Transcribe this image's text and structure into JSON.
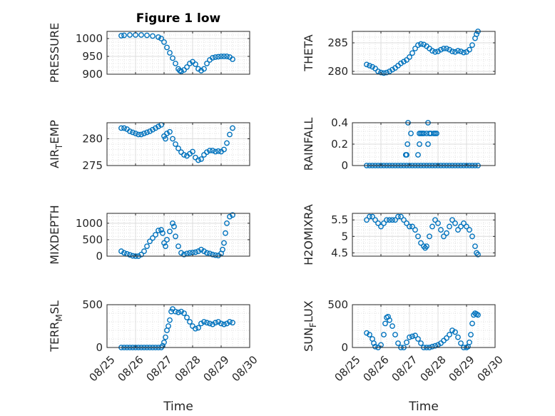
{
  "figure": {
    "title": "Figure 1 low",
    "marker_color": "#0072BD",
    "grid": true,
    "xlabel": "Time"
  },
  "chart_data": [
    {
      "type": "scatter",
      "ylabel": "PRESSURE",
      "title": "Figure 1 low",
      "xlim": [
        0,
        5
      ],
      "ylim": [
        900,
        1020
      ],
      "yticks": [
        900,
        950,
        1000
      ],
      "xticks": [
        0,
        1,
        2,
        3,
        4,
        5
      ],
      "xticklabels": [],
      "x": [
        0.5,
        0.6,
        0.8,
        1.0,
        1.2,
        1.4,
        1.6,
        1.8,
        1.9,
        2.0,
        2.1,
        2.2,
        2.3,
        2.4,
        2.5,
        2.55,
        2.6,
        2.7,
        2.8,
        2.9,
        3.0,
        3.1,
        3.2,
        3.3,
        3.4,
        3.5,
        3.6,
        3.7,
        3.8,
        3.9,
        4.0,
        4.1,
        4.2,
        4.3,
        4.4
      ],
      "y": [
        1008,
        1009,
        1010,
        1010,
        1010,
        1009,
        1007,
        1004,
        1000,
        990,
        975,
        960,
        945,
        930,
        915,
        910,
        908,
        912,
        920,
        930,
        935,
        928,
        915,
        910,
        915,
        930,
        940,
        946,
        948,
        949,
        950,
        950,
        950,
        948,
        942
      ]
    },
    {
      "type": "scatter",
      "ylabel": "THETA",
      "xlim": [
        0,
        5
      ],
      "ylim": [
        279.5,
        287
      ],
      "yticks": [
        280,
        285
      ],
      "xticks": [
        0,
        1,
        2,
        3,
        4,
        5
      ],
      "xticklabels": [],
      "x": [
        0.5,
        0.6,
        0.7,
        0.8,
        0.9,
        1.0,
        1.1,
        1.2,
        1.3,
        1.4,
        1.5,
        1.6,
        1.7,
        1.8,
        1.9,
        2.0,
        2.1,
        2.2,
        2.3,
        2.4,
        2.5,
        2.6,
        2.7,
        2.8,
        2.9,
        3.0,
        3.1,
        3.2,
        3.3,
        3.4,
        3.5,
        3.6,
        3.7,
        3.8,
        3.9,
        4.0,
        4.1,
        4.2,
        4.3,
        4.35,
        4.4
      ],
      "y": [
        281.2,
        281.0,
        280.8,
        280.5,
        280.0,
        279.8,
        279.7,
        279.8,
        280.0,
        280.3,
        280.6,
        281.0,
        281.4,
        281.7,
        282.0,
        282.5,
        283.2,
        284.0,
        284.6,
        284.8,
        284.7,
        284.4,
        284.0,
        283.6,
        283.4,
        283.5,
        283.8,
        284.0,
        284.0,
        283.8,
        283.5,
        283.4,
        283.6,
        283.5,
        283.3,
        283.4,
        283.8,
        284.6,
        285.8,
        286.5,
        287.0
      ]
    },
    {
      "type": "scatter",
      "ylabel": "AIR_TEMP",
      "xlim": [
        0,
        5
      ],
      "ylim": [
        275,
        283
      ],
      "yticks": [
        275,
        280
      ],
      "xticks": [
        0,
        1,
        2,
        3,
        4,
        5
      ],
      "xticklabels": [],
      "x": [
        0.5,
        0.6,
        0.7,
        0.8,
        0.9,
        1.0,
        1.1,
        1.2,
        1.3,
        1.4,
        1.5,
        1.6,
        1.7,
        1.8,
        1.9,
        2.0,
        2.05,
        2.1,
        2.2,
        2.3,
        2.4,
        2.5,
        2.6,
        2.7,
        2.8,
        2.9,
        3.0,
        3.1,
        3.2,
        3.3,
        3.4,
        3.5,
        3.6,
        3.7,
        3.8,
        3.9,
        4.0,
        4.1,
        4.2,
        4.3,
        4.4
      ],
      "y": [
        282.0,
        282.0,
        281.8,
        281.4,
        281.2,
        281.0,
        280.8,
        280.8,
        281.0,
        281.2,
        281.4,
        281.7,
        282.0,
        282.3,
        282.6,
        280.5,
        280.0,
        281.0,
        281.3,
        280.0,
        279.0,
        278.2,
        277.5,
        277.0,
        276.8,
        277.2,
        277.6,
        276.5,
        276.0,
        276.2,
        277.0,
        277.5,
        277.8,
        277.8,
        277.6,
        277.7,
        277.6,
        278.0,
        279.2,
        280.8,
        282.0
      ]
    },
    {
      "type": "scatter",
      "ylabel": "RAINFALL",
      "xlim": [
        0,
        5
      ],
      "ylim": [
        0,
        0.4
      ],
      "yticks": [
        0,
        0.2,
        0.4
      ],
      "xticks": [
        0,
        1,
        2,
        3,
        4,
        5
      ],
      "xticklabels": [],
      "x": [
        0.5,
        0.6,
        0.7,
        0.8,
        0.9,
        1.0,
        1.1,
        1.2,
        1.3,
        1.4,
        1.5,
        1.6,
        1.7,
        1.8,
        1.9,
        2.0,
        2.1,
        2.2,
        2.3,
        2.4,
        2.5,
        2.6,
        2.7,
        2.8,
        2.9,
        3.0,
        3.1,
        3.2,
        3.3,
        3.4,
        3.5,
        3.6,
        3.7,
        3.8,
        3.9,
        4.0,
        4.1,
        4.2,
        4.3,
        4.4,
        1.87,
        1.9,
        1.93,
        1.95,
        2.05,
        2.3,
        2.35,
        2.4,
        2.45,
        2.5,
        2.6,
        2.65,
        2.7,
        2.75,
        2.85,
        2.9,
        2.95,
        2.35,
        2.65
      ],
      "y": [
        0,
        0,
        0,
        0,
        0,
        0,
        0,
        0,
        0,
        0,
        0,
        0,
        0,
        0,
        0,
        0,
        0,
        0,
        0,
        0,
        0,
        0,
        0,
        0,
        0,
        0,
        0,
        0,
        0,
        0,
        0,
        0,
        0,
        0,
        0,
        0,
        0,
        0,
        0,
        0,
        0.1,
        0.1,
        0.2,
        0.4,
        0.3,
        0.1,
        0.2,
        0.3,
        0.3,
        0.3,
        0.3,
        0.4,
        0.3,
        0.3,
        0.3,
        0.3,
        0.3,
        0.3,
        0.2
      ]
    },
    {
      "type": "scatter",
      "ylabel": "MIXDEPTH",
      "xlim": [
        0,
        5
      ],
      "ylim": [
        0,
        1300
      ],
      "yticks": [
        0,
        500,
        1000
      ],
      "xticks": [
        0,
        1,
        2,
        3,
        4,
        5
      ],
      "xticklabels": [],
      "x": [
        0.5,
        0.6,
        0.7,
        0.8,
        0.9,
        1.0,
        1.1,
        1.2,
        1.3,
        1.4,
        1.5,
        1.6,
        1.7,
        1.8,
        1.9,
        1.95,
        2.0,
        2.05,
        2.1,
        2.2,
        2.3,
        2.35,
        2.4,
        2.5,
        2.6,
        2.7,
        2.8,
        2.9,
        3.0,
        3.1,
        3.2,
        3.3,
        3.4,
        3.5,
        3.6,
        3.7,
        3.8,
        3.9,
        4.0,
        4.05,
        4.1,
        4.15,
        4.2,
        4.3,
        4.4
      ],
      "y": [
        150,
        100,
        70,
        40,
        10,
        0,
        0,
        50,
        150,
        300,
        450,
        550,
        650,
        780,
        800,
        700,
        400,
        300,
        500,
        750,
        1000,
        900,
        600,
        300,
        100,
        50,
        80,
        100,
        110,
        120,
        150,
        200,
        150,
        100,
        80,
        50,
        30,
        20,
        80,
        200,
        400,
        700,
        1000,
        1200,
        1250
      ]
    },
    {
      "type": "scatter",
      "ylabel": "H2OMIXRA",
      "xlim": [
        0,
        5
      ],
      "ylim": [
        4.4,
        5.7
      ],
      "yticks": [
        4.5,
        5,
        5.5
      ],
      "xticks": [
        0,
        1,
        2,
        3,
        4,
        5
      ],
      "xticklabels": [],
      "x": [
        0.5,
        0.6,
        0.7,
        0.8,
        0.9,
        1.0,
        1.1,
        1.2,
        1.3,
        1.4,
        1.5,
        1.6,
        1.7,
        1.8,
        1.9,
        2.0,
        2.1,
        2.2,
        2.3,
        2.4,
        2.5,
        2.55,
        2.6,
        2.7,
        2.8,
        2.9,
        3.0,
        3.1,
        3.2,
        3.3,
        3.4,
        3.5,
        3.6,
        3.7,
        3.8,
        3.9,
        4.0,
        4.1,
        4.2,
        4.3,
        4.35,
        4.4
      ],
      "y": [
        5.5,
        5.6,
        5.6,
        5.5,
        5.4,
        5.3,
        5.4,
        5.5,
        5.5,
        5.5,
        5.5,
        5.6,
        5.6,
        5.5,
        5.4,
        5.3,
        5.3,
        5.2,
        5.0,
        4.8,
        4.7,
        4.65,
        4.7,
        5.0,
        5.3,
        5.5,
        5.4,
        5.2,
        5.0,
        5.1,
        5.3,
        5.5,
        5.4,
        5.2,
        5.3,
        5.4,
        5.3,
        5.2,
        5.0,
        4.7,
        4.5,
        4.45
      ]
    },
    {
      "type": "scatter",
      "ylabel": "TERR_MSL",
      "xlim": [
        0,
        5
      ],
      "ylim": [
        0,
        500
      ],
      "yticks": [
        0,
        500
      ],
      "xticks": [
        0,
        1,
        2,
        3,
        4,
        5
      ],
      "xticklabels": [
        "08/25",
        "08/26",
        "08/27",
        "08/28",
        "08/29",
        "08/30"
      ],
      "x": [
        0.5,
        0.6,
        0.7,
        0.8,
        0.9,
        1.0,
        1.1,
        1.2,
        1.3,
        1.4,
        1.5,
        1.6,
        1.7,
        1.8,
        1.9,
        1.95,
        2.0,
        2.05,
        2.1,
        2.15,
        2.2,
        2.25,
        2.3,
        2.4,
        2.5,
        2.6,
        2.7,
        2.8,
        2.9,
        3.0,
        3.1,
        3.2,
        3.3,
        3.4,
        3.5,
        3.6,
        3.7,
        3.8,
        3.9,
        4.0,
        4.1,
        4.2,
        4.3,
        4.4
      ],
      "y": [
        0,
        0,
        0,
        0,
        0,
        0,
        0,
        0,
        0,
        0,
        0,
        0,
        0,
        0,
        0,
        20,
        60,
        120,
        200,
        250,
        320,
        420,
        450,
        420,
        410,
        420,
        400,
        350,
        300,
        250,
        220,
        230,
        280,
        300,
        290,
        280,
        270,
        290,
        300,
        280,
        270,
        280,
        300,
        290
      ]
    },
    {
      "type": "scatter",
      "ylabel": "SUN_FLUX",
      "xlim": [
        0,
        5
      ],
      "ylim": [
        0,
        500
      ],
      "yticks": [
        0,
        500
      ],
      "xticks": [
        0,
        1,
        2,
        3,
        4,
        5
      ],
      "xticklabels": [
        "08/25",
        "08/26",
        "08/27",
        "08/28",
        "08/29",
        "08/30"
      ],
      "x": [
        0.5,
        0.6,
        0.7,
        0.75,
        0.8,
        0.9,
        1.0,
        1.1,
        1.15,
        1.2,
        1.25,
        1.3,
        1.4,
        1.5,
        1.6,
        1.7,
        1.8,
        1.9,
        2.0,
        2.1,
        2.2,
        2.3,
        2.4,
        2.5,
        2.6,
        2.7,
        2.8,
        2.9,
        3.0,
        3.1,
        3.2,
        3.3,
        3.4,
        3.5,
        3.6,
        3.7,
        3.8,
        3.9,
        4.0,
        4.05,
        4.1,
        4.15,
        4.2,
        4.25,
        4.3,
        4.35,
        4.4
      ],
      "y": [
        170,
        150,
        100,
        50,
        10,
        0,
        30,
        150,
        280,
        350,
        360,
        320,
        250,
        150,
        50,
        0,
        0,
        60,
        120,
        130,
        140,
        100,
        50,
        0,
        0,
        0,
        10,
        20,
        30,
        50,
        80,
        110,
        150,
        200,
        180,
        120,
        50,
        0,
        0,
        10,
        60,
        150,
        280,
        380,
        400,
        390,
        380
      ]
    }
  ]
}
